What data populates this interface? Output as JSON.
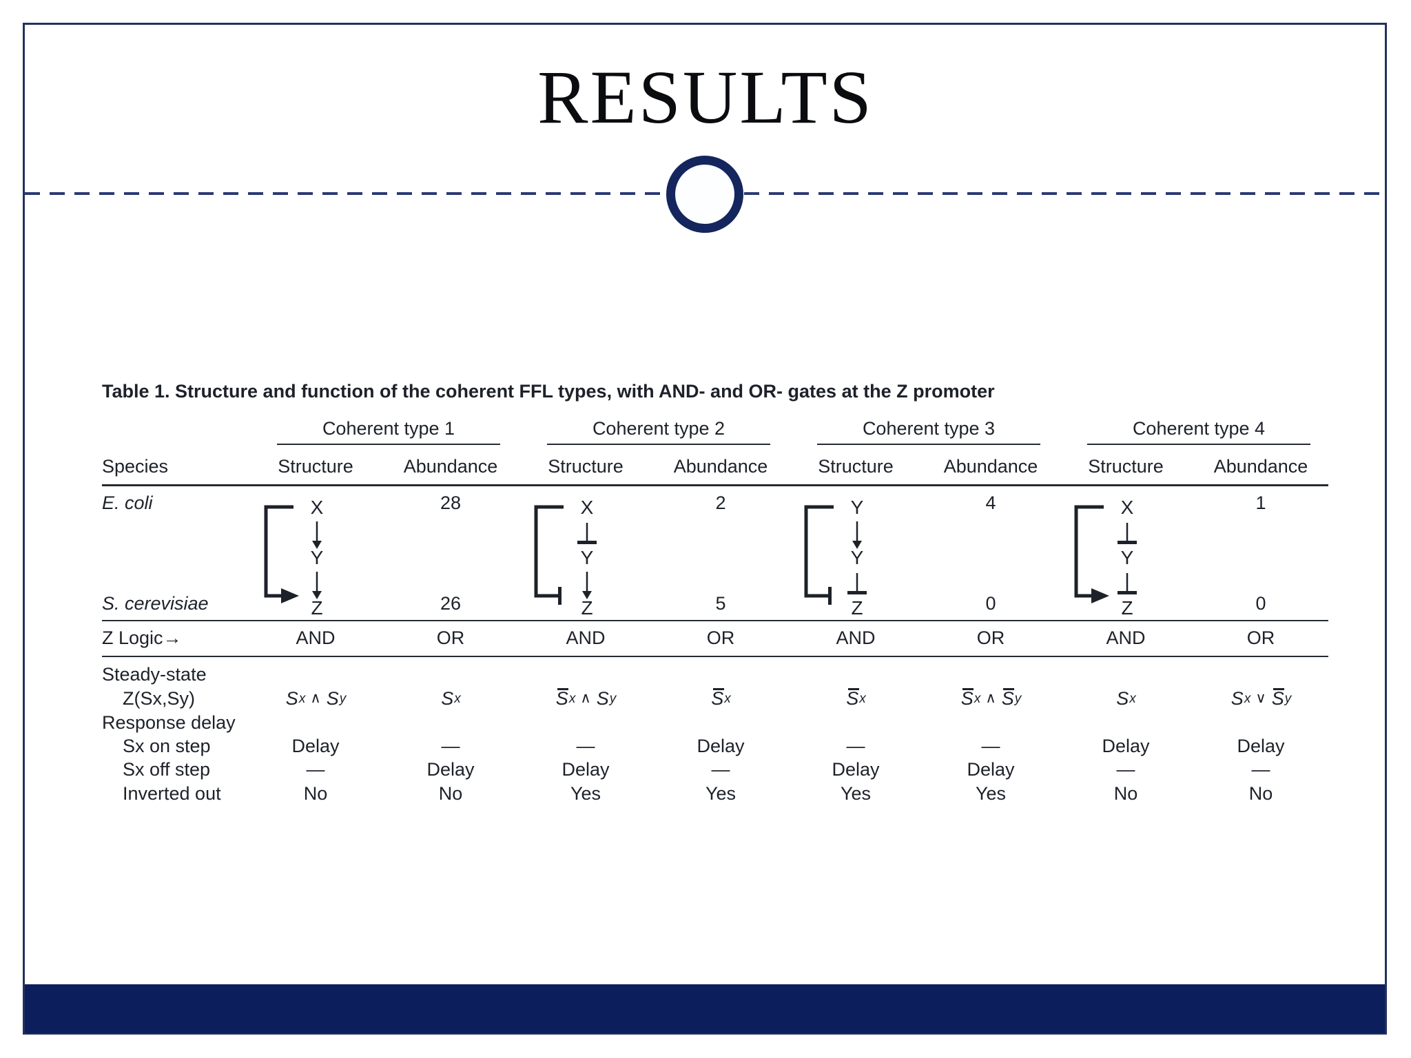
{
  "title": "RESULTS",
  "colors": {
    "navy_footer": "#0c1f5c",
    "navy_circle": "#15255d",
    "navy_border": "#24315f",
    "navy_dashes": "#2b3a74",
    "ink": "#1d2129"
  },
  "table": {
    "caption": "Table 1. Structure and function of the coherent FFL types, with AND- and OR- gates at the Z promoter",
    "groups": [
      "Coherent type 1",
      "Coherent type 2",
      "Coherent type 3",
      "Coherent type 4"
    ],
    "species_header": "Species",
    "sub_headers": [
      "Structure",
      "Abundance"
    ],
    "structures": [
      {
        "nodes": [
          "X",
          "Y",
          "Z"
        ],
        "edge1": "act",
        "edge2": "act",
        "loop": "act"
      },
      {
        "nodes": [
          "X",
          "Y",
          "Z"
        ],
        "edge1": "rep",
        "edge2": "act",
        "loop": "rep"
      },
      {
        "nodes": [
          "Y",
          "Y",
          "Z"
        ],
        "edge1": "act",
        "edge2": "rep",
        "loop": "rep"
      },
      {
        "nodes": [
          "X",
          "Y",
          "Z"
        ],
        "edge1": "rep",
        "edge2": "rep",
        "loop": "act"
      }
    ],
    "rows": {
      "ecoli": {
        "label": "E. coli",
        "abundance": [
          "28",
          "2",
          "4",
          "1"
        ]
      },
      "scerevisiae": {
        "label": "S. cerevisiae",
        "abundance": [
          "26",
          "5",
          "0",
          "0"
        ]
      },
      "zlogic": {
        "label": "Z Logic→",
        "values": [
          "AND",
          "OR",
          "AND",
          "OR",
          "AND",
          "OR",
          "AND",
          "OR"
        ]
      },
      "steady_state_label": "Steady-state",
      "zsxsy": {
        "label": "Z(Sx,Sy)",
        "formulas": [
          [
            {
              "v": "S",
              "sub": "x"
            },
            {
              "op": "∧"
            },
            {
              "v": "S",
              "sub": "y"
            }
          ],
          [
            {
              "v": "S",
              "sub": "x"
            }
          ],
          [
            {
              "v": "S",
              "bar": true,
              "sub": "x"
            },
            {
              "op": "∧"
            },
            {
              "v": "S",
              "sub": "y"
            }
          ],
          [
            {
              "v": "S",
              "bar": true,
              "sub": "x"
            }
          ],
          [
            {
              "v": "S",
              "bar": true,
              "sub": "x"
            }
          ],
          [
            {
              "v": "S",
              "bar": true,
              "sub": "x"
            },
            {
              "op": "∧"
            },
            {
              "v": "S",
              "bar": true,
              "sub": "y"
            }
          ],
          [
            {
              "v": "S",
              "sub": "x"
            }
          ],
          [
            {
              "v": "S",
              "sub": "x"
            },
            {
              "op": "∨"
            },
            {
              "v": "S",
              "bar": true,
              "sub": "y"
            }
          ]
        ]
      },
      "response_delay_label": "Response delay",
      "sx_on": {
        "label": "Sx on step",
        "values": [
          "Delay",
          "—",
          "—",
          "Delay",
          "—",
          "—",
          "Delay",
          "Delay"
        ]
      },
      "sx_off": {
        "label": "Sx off step",
        "values": [
          "—",
          "Delay",
          "Delay",
          "—",
          "Delay",
          "Delay",
          "—",
          "—"
        ]
      },
      "inverted": {
        "label": "Inverted out",
        "values": [
          "No",
          "No",
          "Yes",
          "Yes",
          "Yes",
          "Yes",
          "No",
          "No"
        ]
      }
    }
  }
}
